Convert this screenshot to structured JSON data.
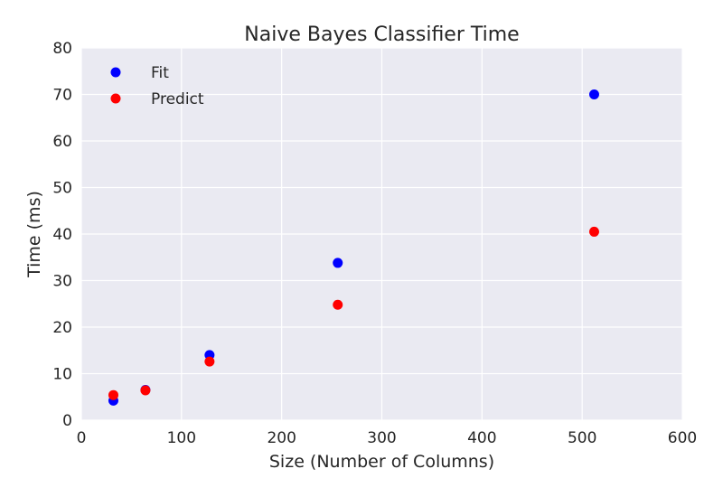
{
  "chart_data": {
    "type": "scatter",
    "title": "Naive Bayes Classifier Time",
    "xlabel": "Size (Number of Columns)",
    "ylabel": "Time (ms)",
    "xlim": [
      0,
      600
    ],
    "ylim": [
      0,
      80
    ],
    "xticks": [
      0,
      100,
      200,
      300,
      400,
      500,
      600
    ],
    "yticks": [
      0,
      10,
      20,
      30,
      40,
      50,
      60,
      70,
      80
    ],
    "grid": true,
    "legend_position": "top-left",
    "series": [
      {
        "name": "Fit",
        "color": "#0000ff",
        "x": [
          32,
          64,
          128,
          256,
          512
        ],
        "y": [
          4.2,
          6.5,
          14.0,
          33.8,
          70.0
        ]
      },
      {
        "name": "Predict",
        "color": "#ff0000",
        "x": [
          32,
          64,
          128,
          256,
          512
        ],
        "y": [
          5.4,
          6.4,
          12.6,
          24.8,
          40.5
        ]
      }
    ]
  }
}
